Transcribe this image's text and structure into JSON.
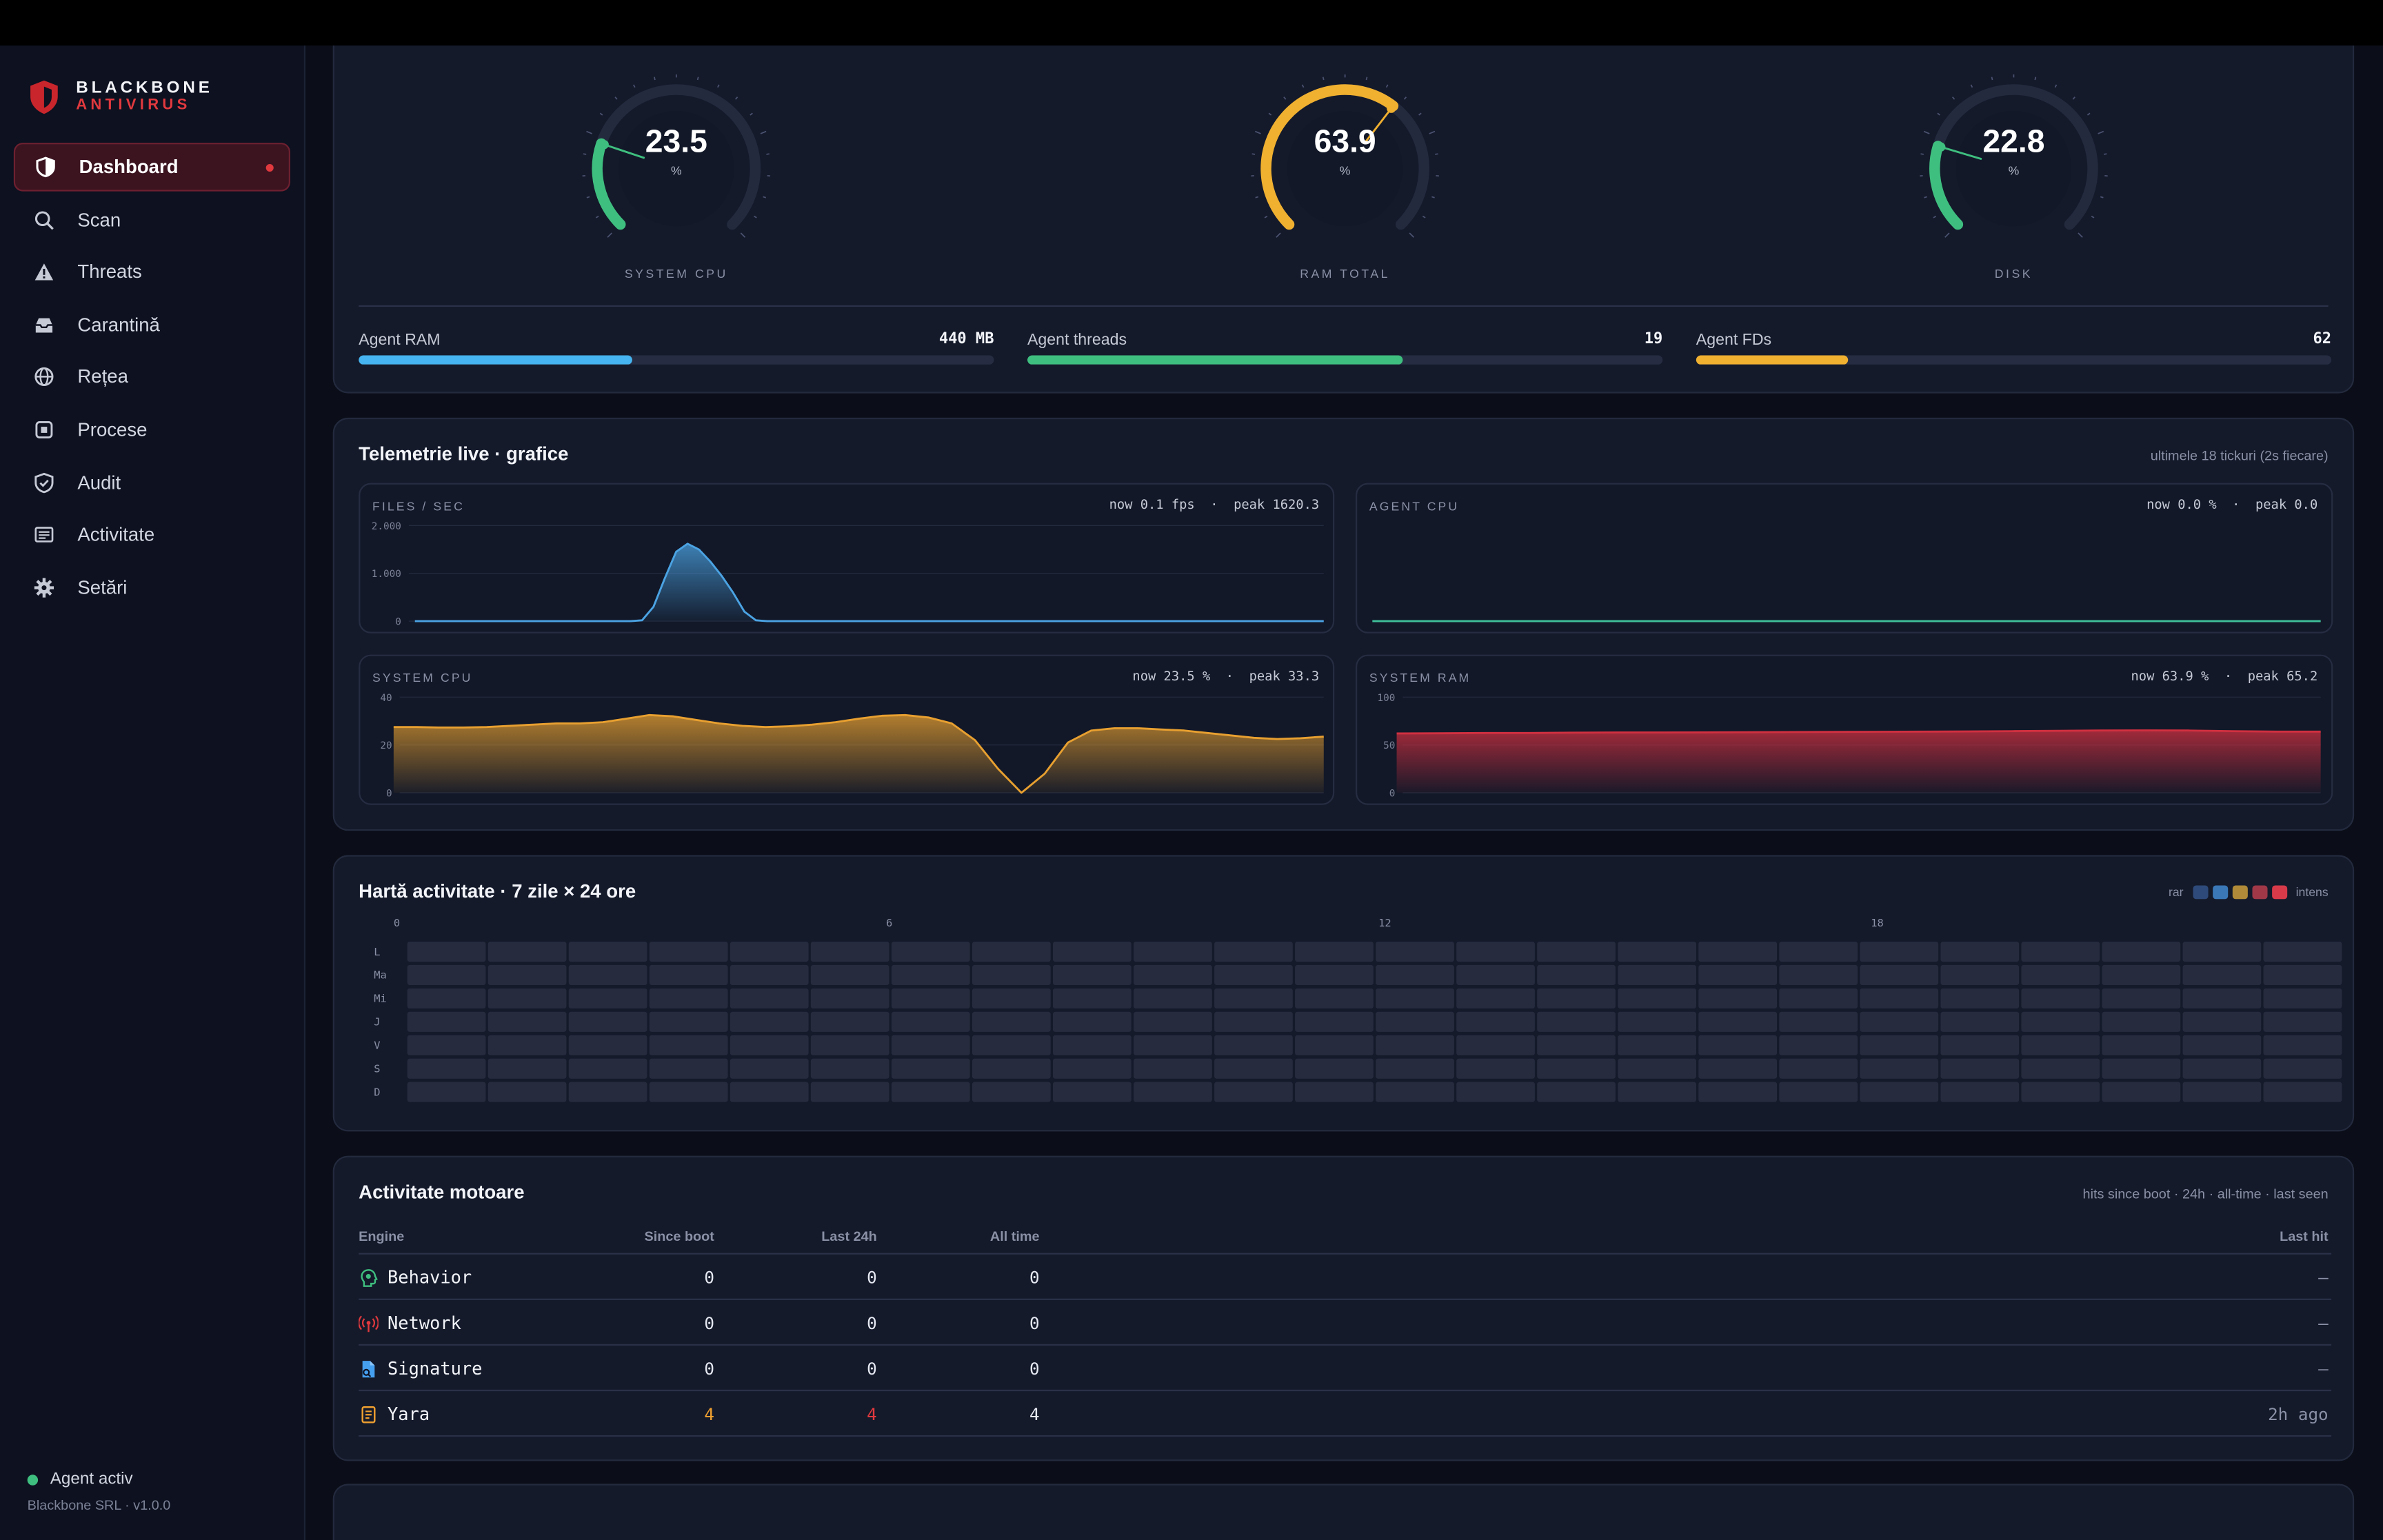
{
  "brand": {
    "name": "BLACKBONE",
    "sub": "ANTIVIRUS"
  },
  "sidebar": {
    "items": [
      {
        "label": "Dashboard",
        "icon": "shield-icon"
      },
      {
        "label": "Scan",
        "icon": "search-icon"
      },
      {
        "label": "Threats",
        "icon": "warning-icon"
      },
      {
        "label": "Carantină",
        "icon": "inbox-icon"
      },
      {
        "label": "Rețea",
        "icon": "globe-icon"
      },
      {
        "label": "Procese",
        "icon": "chip-icon"
      },
      {
        "label": "Audit",
        "icon": "shield-check-icon"
      },
      {
        "label": "Activitate",
        "icon": "list-icon"
      },
      {
        "label": "Setări",
        "icon": "gear-icon"
      }
    ],
    "agent_status": "Agent activ",
    "version": "Blackbone SRL · v1.0.0"
  },
  "gauges": [
    {
      "value": "23.5",
      "unit": "%",
      "label": "SYSTEM CPU",
      "fraction": 0.235,
      "color": "#3fbf7f"
    },
    {
      "value": "63.9",
      "unit": "%",
      "label": "RAM TOTAL",
      "fraction": 0.639,
      "color": "#f0b030"
    },
    {
      "value": "22.8",
      "unit": "%",
      "label": "DISK",
      "fraction": 0.228,
      "color": "#3fbf7f"
    }
  ],
  "meters": [
    {
      "label": "Agent RAM",
      "value": "440 MB",
      "fraction": 0.43,
      "color": "#46b4f0"
    },
    {
      "label": "Agent threads",
      "value": "19",
      "fraction": 0.59,
      "color": "#3fbf7f"
    },
    {
      "label": "Agent FDs",
      "value": "62",
      "fraction": 0.24,
      "color": "#f0b030"
    }
  ],
  "telemetry": {
    "title": "Telemetrie live · grafice",
    "subtitle": "ultimele 18 tickuri (2s fiecare)",
    "charts": [
      {
        "name": "FILES / SEC",
        "stats": "now 0.1 fps  ·  peak 1620.3",
        "color": "#4ba3e3",
        "chart_data": {
          "type": "area",
          "ylim": [
            0,
            2000
          ],
          "yticks": [
            "2.000",
            "1.000",
            "0"
          ],
          "values": [
            0,
            0,
            0,
            0,
            0,
            0,
            0,
            0,
            0,
            0,
            0,
            0,
            0,
            0,
            0,
            0,
            0,
            0,
            0,
            0,
            20,
            300,
            900,
            1450,
            1620,
            1500,
            1250,
            950,
            600,
            200,
            20,
            0,
            0,
            0,
            0,
            0,
            0,
            0,
            0,
            0,
            0,
            0,
            0,
            0,
            0,
            0,
            0,
            0,
            0,
            0,
            0,
            0,
            0,
            0,
            0,
            0,
            0,
            0,
            0,
            0,
            0,
            0,
            0,
            0,
            0,
            0,
            0,
            0,
            0,
            0,
            0,
            0,
            0,
            0,
            0,
            0,
            0,
            0,
            0,
            0,
            0.1
          ]
        }
      },
      {
        "name": "AGENT CPU",
        "stats": "now 0.0 %  ·  peak 0.0",
        "color": "#3fbf9a",
        "chart_data": {
          "type": "line",
          "ylim": [
            0,
            1
          ],
          "yticks": [],
          "values": [
            0,
            0
          ]
        }
      },
      {
        "name": "SYSTEM CPU",
        "stats": "now 23.5 %  ·  peak 33.3",
        "color": "#e8a030",
        "chart_data": {
          "type": "area",
          "ylim": [
            0,
            40
          ],
          "yticks": [
            "40",
            "20",
            "0"
          ],
          "values": [
            27.5,
            27.5,
            27.3,
            27.3,
            27.5,
            28,
            28.5,
            29,
            29,
            29.5,
            31,
            32.5,
            32,
            30.5,
            29,
            28,
            27.5,
            27.8,
            28.5,
            29.5,
            31,
            32.2,
            32.5,
            31.5,
            29,
            22,
            10,
            0,
            8,
            21,
            26,
            27,
            27,
            26.5,
            26,
            25,
            24,
            23,
            22.5,
            22.8,
            23.5
          ]
        }
      },
      {
        "name": "SYSTEM RAM",
        "stats": "now 63.9 %  ·  peak 65.2",
        "color": "#d03040",
        "chart_data": {
          "type": "area",
          "ylim": [
            0,
            100
          ],
          "yticks": [
            "100",
            "50",
            "0"
          ],
          "values": [
            62,
            62.3,
            62.5,
            62.6,
            62.8,
            63,
            63,
            63.2,
            63.3,
            63.5,
            63.6,
            63.8,
            64,
            64.2,
            64.5,
            64.8,
            65,
            65.2,
            65,
            64.5,
            64,
            63.9
          ]
        }
      }
    ]
  },
  "heatmap": {
    "title": "Hartă activitate · 7 zile × 24 ore",
    "legend_low": "rar",
    "legend_high": "intens",
    "legend_colors": [
      "#2e4a7a",
      "#3a78b8",
      "#b08a38",
      "#a03848",
      "#d83a4a"
    ],
    "hour_ticks": [
      "0",
      "6",
      "12",
      "18"
    ],
    "days": [
      "L",
      "Ma",
      "Mi",
      "J",
      "V",
      "S",
      "D"
    ],
    "cell_color": "#262c3e"
  },
  "engines": {
    "title": "Activitate motoare",
    "subtitle": "hits since boot · 24h · all-time · last seen",
    "columns": [
      "Engine",
      "Since boot",
      "Last 24h",
      "All time",
      "Last hit"
    ],
    "rows": [
      {
        "name": "Behavior",
        "icon": "brain-icon",
        "icon_color": "#3fbf7f",
        "since_boot": "0",
        "last_24h": "0",
        "all_time": "0",
        "last_hit": "—"
      },
      {
        "name": "Network",
        "icon": "antenna-icon",
        "icon_color": "#e0393e",
        "since_boot": "0",
        "last_24h": "0",
        "all_time": "0",
        "last_hit": "—"
      },
      {
        "name": "Signature",
        "icon": "file-search-icon",
        "icon_color": "#46a0f0",
        "since_boot": "0",
        "last_24h": "0",
        "all_time": "0",
        "last_hit": "—"
      },
      {
        "name": "Yara",
        "icon": "scroll-icon",
        "icon_color": "#f0a030",
        "since_boot": "4",
        "last_24h": "4",
        "all_time": "4",
        "last_hit": "2h ago"
      }
    ]
  }
}
